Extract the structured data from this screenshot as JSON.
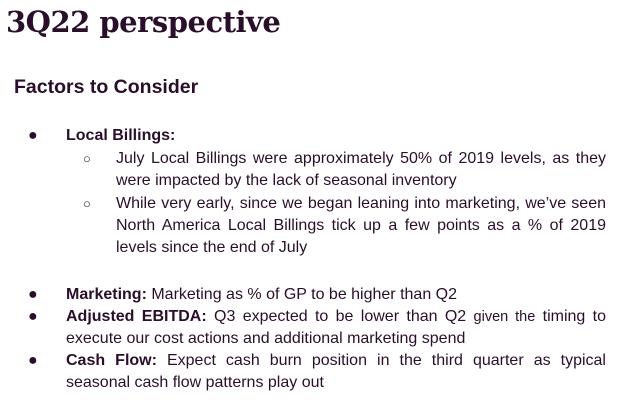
{
  "title": "3Q22 perspective",
  "heading": "Factors to Consider",
  "bullets": {
    "local_billings": {
      "label": "Local Billings:",
      "sub1": "July Local Billings were approximately 50% of 2019 levels, as they were impacted by the lack of seasonal inventory",
      "sub2": "While very early, since we began leaning into marketing, we’ve seen North America Local Billings tick up a few points as a % of 2019 levels since the end of July"
    },
    "marketing": {
      "label": "Marketing:",
      "text": " Marketing as % of GP to be higher than Q2"
    },
    "ebitda": {
      "label": "Adjusted EBITDA:",
      "text_a": " Q3 expected to be lower than Q2 ",
      "text_small": "given the",
      "text_b": " timing to execute our cost actions and additional marketing spend"
    },
    "cash_flow": {
      "label": "Cash Flow:",
      "text": " Expect cash burn position in the third quarter as typical seasonal cash flow patterns play out"
    }
  },
  "glyphs": {
    "bullet": "●",
    "sub_bullet": "○"
  }
}
